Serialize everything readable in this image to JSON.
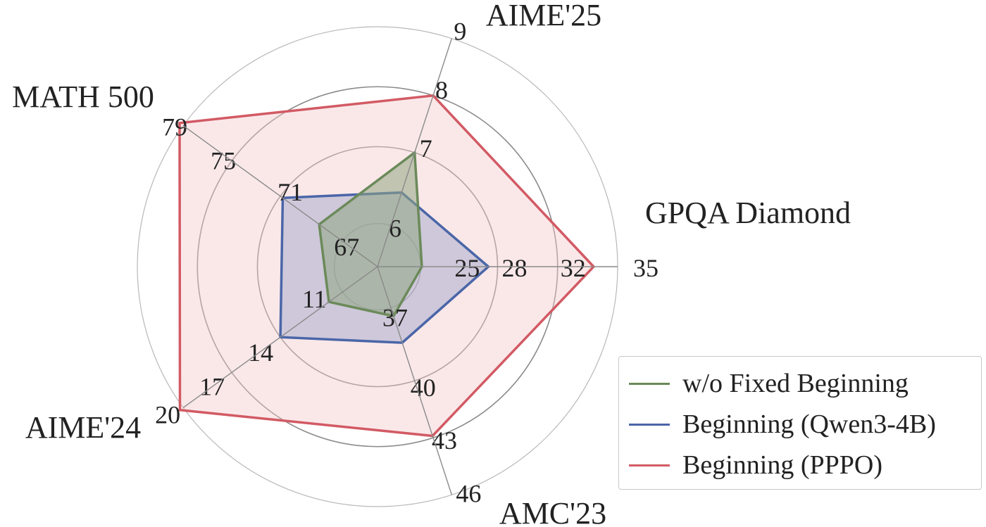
{
  "chart_data": {
    "type": "radar",
    "axes": [
      {
        "label": "GPQA Diamond",
        "ticks": [
          "25",
          "28",
          "32",
          "35"
        ],
        "range": [
          22,
          35
        ]
      },
      {
        "label": "AIME'25",
        "ticks": [
          "6",
          "7",
          "8",
          "9"
        ],
        "range": [
          5,
          9
        ]
      },
      {
        "label": "MATH 500",
        "ticks": [
          "67",
          "71",
          "75",
          "79"
        ],
        "range": [
          63,
          79
        ]
      },
      {
        "label": "AIME'24",
        "ticks": [
          "11",
          "14",
          "17",
          "20"
        ],
        "range": [
          8,
          20
        ]
      },
      {
        "label": "AMC'23",
        "ticks": [
          "37",
          "40",
          "43",
          "46"
        ],
        "range": [
          34,
          46
        ]
      }
    ],
    "series": [
      {
        "name": "w/o Fixed Beginning",
        "color": "#6b8a5a",
        "fill": "#8fa682",
        "fill_opacity": 0.55,
        "values": [
          24.4,
          7.0,
          67.8,
          11.0,
          36.6
        ]
      },
      {
        "name": "Beginning (Qwen3-4B)",
        "color": "#4a66a8",
        "fill": "#9aa2c8",
        "fill_opacity": 0.45,
        "values": [
          28.0,
          6.3,
          70.8,
          14.0,
          38.0
        ]
      },
      {
        "name": "Beginning (PPPO)",
        "color": "#d25a64",
        "fill": "#f2c8ca",
        "fill_opacity": 0.42,
        "values": [
          33.7,
          8.0,
          79.3,
          20.2,
          42.9
        ]
      }
    ],
    "legend_position": "bottom-right",
    "grid": true
  }
}
